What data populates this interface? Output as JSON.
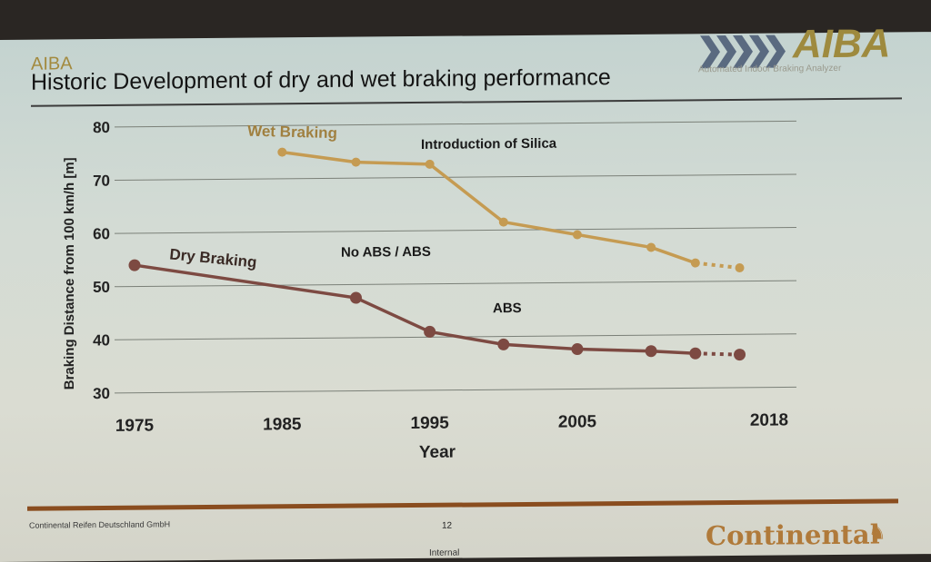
{
  "slide": {
    "kicker": "AIBA",
    "title": "Historic Development of dry and wet braking performance",
    "logo_text": "AIBA",
    "logo_subtitle": "Automated Indoor Braking Analyzer",
    "footer_company": "Continental Reifen Deutschland GmbH",
    "page_number": "12",
    "classification": "Internal",
    "brand": "Continental"
  },
  "colors": {
    "wet": "#c59b52",
    "dry": "#7d4a42",
    "accent_rule": "#8a4d1f",
    "brand": "#b07a3a"
  },
  "chart_data": {
    "type": "line",
    "xlabel": "Year",
    "ylabel": "Braking Distance from 100 km/h [m]",
    "xlim": [
      1975,
      2018
    ],
    "ylim": [
      30,
      80
    ],
    "x_ticks": [
      "1975",
      "1985",
      "1995",
      "2005",
      "2018"
    ],
    "y_ticks": [
      "30",
      "40",
      "50",
      "60",
      "70",
      "80"
    ],
    "grid": true,
    "series": [
      {
        "name": "Wet Braking",
        "points": [
          {
            "x": 1985,
            "y": 75
          },
          {
            "x": 1990,
            "y": 73
          },
          {
            "x": 1995,
            "y": 72.5
          },
          {
            "x": 2000,
            "y": 61.5
          },
          {
            "x": 2005,
            "y": 59
          },
          {
            "x": 2010,
            "y": 56.5
          },
          {
            "x": 2013,
            "y": 53.5
          },
          {
            "x": 2016,
            "y": 52.5,
            "projected": true
          }
        ]
      },
      {
        "name": "Dry Braking",
        "points": [
          {
            "x": 1975,
            "y": 54
          },
          {
            "x": 1990,
            "y": 47.5
          },
          {
            "x": 1995,
            "y": 41
          },
          {
            "x": 2000,
            "y": 38.5
          },
          {
            "x": 2005,
            "y": 37.5
          },
          {
            "x": 2010,
            "y": 37
          },
          {
            "x": 2013,
            "y": 36.5
          },
          {
            "x": 2016,
            "y": 36.2,
            "projected": true
          }
        ]
      }
    ],
    "annotations": [
      "Introduction of Silica",
      "No ABS / ABS",
      "ABS"
    ]
  }
}
